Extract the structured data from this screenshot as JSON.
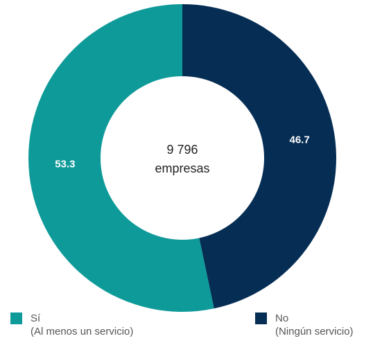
{
  "chart_data": {
    "type": "pie",
    "categories": [
      "Sí",
      "No"
    ],
    "values": [
      53.3,
      46.7
    ],
    "value_labels": [
      "53.3",
      "46.7"
    ],
    "colors": [
      "#0f9a9a",
      "#062e55"
    ],
    "center_text": {
      "line1": "9 796",
      "line2": "empresas"
    },
    "legend": [
      {
        "name": "Sí",
        "detail": "(Al menos un servicio)",
        "color": "#0f9a9a"
      },
      {
        "name": "No",
        "detail": "(Ningún servicio)",
        "color": "#062e55"
      }
    ],
    "legend_position": "bottom"
  }
}
